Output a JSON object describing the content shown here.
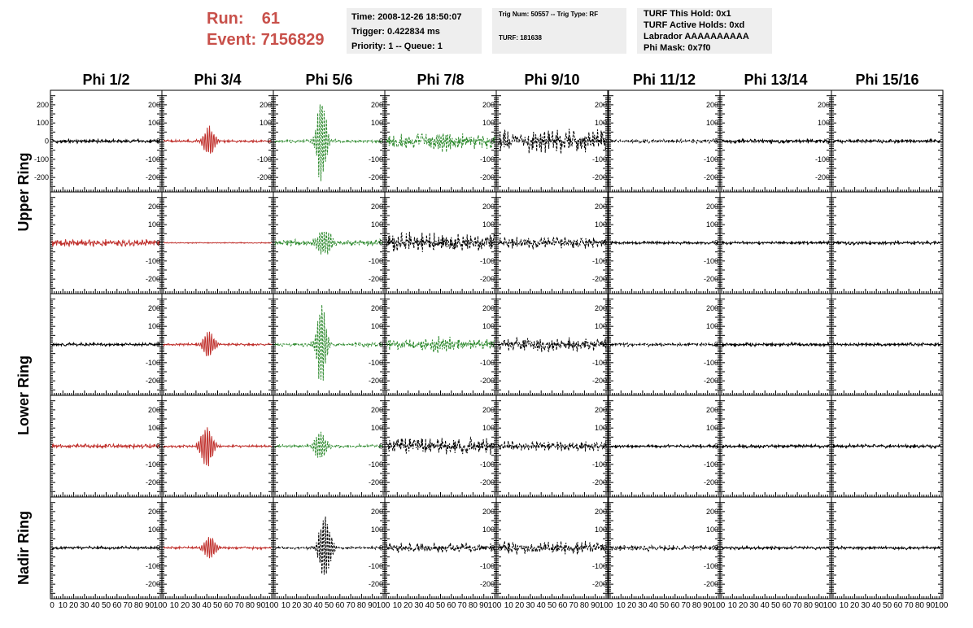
{
  "header": {
    "run_label": "Run:",
    "run_value": "61",
    "event_label": "Event:",
    "event_value": "7156829",
    "time_line": "Time: 2008-12-26 18:50:07",
    "trigger_line": "Trigger: 0.422834 ms",
    "priority_line": "Priority: 1 -- Queue: 1",
    "trig_line": "Trig Num: 50557 -- Trig Type: RF",
    "turf_line": "TURF: 181638",
    "hold_line": "TURF This Hold: 0x1",
    "active_holds_line": "TURF Active Holds: 0xd",
    "labrador_line": "Labrador AAAAAAAAAA",
    "phi_mask_line": "Phi Mask: 0x7f0"
  },
  "colors": {
    "black": "#000000",
    "red": "#c0302c",
    "green": "#2e8a2e",
    "accent": "#c8504a"
  },
  "chart_data": {
    "type": "line",
    "columns": [
      "Phi 1/2",
      "Phi 3/4",
      "Phi 5/6",
      "Phi 7/8",
      "Phi 9/10",
      "Phi 11/12",
      "Phi 13/14",
      "Phi 15/16"
    ],
    "rows": [
      "Upper Ring",
      "Lower Ring",
      "Nadir Ring"
    ],
    "ylim": [
      -280,
      280
    ],
    "yticks": [
      -200,
      -100,
      0,
      100,
      200
    ],
    "ytick_labels": [
      "-200",
      "-100",
      "0",
      "100",
      "200"
    ],
    "xlim": [
      0,
      100
    ],
    "xticks": [
      0,
      10,
      20,
      30,
      40,
      50,
      60,
      70,
      80,
      90,
      100
    ],
    "xtick_labels": [
      "0",
      "10",
      "20",
      "30",
      "40",
      "50",
      "60",
      "70",
      "80",
      "90",
      "100"
    ],
    "panels": [
      [
        {
          "color": "black",
          "style": "solid",
          "amp": 12,
          "burst": null
        },
        {
          "color": "red",
          "style": "solid",
          "amp": 8,
          "burst": {
            "t": 42,
            "amp": 90,
            "w": 6
          }
        },
        {
          "color": "green",
          "style": "dashed",
          "amp": 10,
          "burst": {
            "t": 43,
            "amp": 280,
            "w": 5
          }
        },
        {
          "color": "green",
          "style": "dashed",
          "amp": 45,
          "burst": {
            "t": 50,
            "amp": 40,
            "w": 12
          }
        },
        {
          "color": "black",
          "style": "dashed",
          "amp": 70,
          "burst": null
        },
        {
          "color": "black",
          "style": "dashed",
          "amp": 12,
          "burst": null
        },
        {
          "color": "black",
          "style": "solid",
          "amp": 14,
          "burst": null
        },
        {
          "color": "black",
          "style": "solid",
          "amp": 12,
          "burst": null
        }
      ],
      [
        {
          "color": "red",
          "style": "solid",
          "amp": 22,
          "burst": null
        },
        {
          "color": "red",
          "style": "solid",
          "amp": 3,
          "burst": null
        },
        {
          "color": "green",
          "style": "dashed",
          "amp": 20,
          "burst": {
            "t": 45,
            "amp": 80,
            "w": 8
          }
        },
        {
          "color": "black",
          "style": "dashed",
          "amp": 65,
          "burst": null
        },
        {
          "color": "black",
          "style": "dashed",
          "amp": 35,
          "burst": null
        },
        {
          "color": "black",
          "style": "solid",
          "amp": 10,
          "burst": null
        },
        {
          "color": "black",
          "style": "solid",
          "amp": 10,
          "burst": null
        },
        {
          "color": "black",
          "style": "solid",
          "amp": 12,
          "burst": null
        }
      ],
      [
        {
          "color": "black",
          "style": "solid",
          "amp": 10,
          "burst": null
        },
        {
          "color": "red",
          "style": "solid",
          "amp": 8,
          "burst": {
            "t": 42,
            "amp": 80,
            "w": 6
          }
        },
        {
          "color": "green",
          "style": "dashed",
          "amp": 12,
          "burst": {
            "t": 43,
            "amp": 260,
            "w": 5
          }
        },
        {
          "color": "green",
          "style": "dashed",
          "amp": 35,
          "burst": {
            "t": 50,
            "amp": 30,
            "w": 12
          }
        },
        {
          "color": "black",
          "style": "dashed",
          "amp": 40,
          "burst": {
            "t": 35,
            "amp": 20,
            "w": 15
          }
        },
        {
          "color": "black",
          "style": "dashed",
          "amp": 12,
          "burst": null
        },
        {
          "color": "black",
          "style": "solid",
          "amp": 12,
          "burst": null
        },
        {
          "color": "black",
          "style": "solid",
          "amp": 10,
          "burst": null
        }
      ],
      [
        {
          "color": "red",
          "style": "solid",
          "amp": 14,
          "burst": null
        },
        {
          "color": "red",
          "style": "solid",
          "amp": 8,
          "burst": {
            "t": 40,
            "amp": 140,
            "w": 6
          }
        },
        {
          "color": "green",
          "style": "dashed",
          "amp": 10,
          "burst": {
            "t": 42,
            "amp": 90,
            "w": 6
          }
        },
        {
          "color": "black",
          "style": "dashed",
          "amp": 50,
          "burst": null
        },
        {
          "color": "black",
          "style": "dashed",
          "amp": 30,
          "burst": null
        },
        {
          "color": "black",
          "style": "solid",
          "amp": 10,
          "burst": null
        },
        {
          "color": "black",
          "style": "solid",
          "amp": 12,
          "burst": null
        },
        {
          "color": "black",
          "style": "solid",
          "amp": 12,
          "burst": null
        }
      ],
      [
        {
          "color": "black",
          "style": "solid",
          "amp": 10,
          "burst": null
        },
        {
          "color": "red",
          "style": "solid",
          "amp": 8,
          "burst": {
            "t": 43,
            "amp": 70,
            "w": 6
          }
        },
        {
          "color": "black",
          "style": "dashed",
          "amp": 8,
          "burst": {
            "t": 46,
            "amp": 200,
            "w": 6
          }
        },
        {
          "color": "black",
          "style": "dashed",
          "amp": 30,
          "burst": null
        },
        {
          "color": "black",
          "style": "dashed",
          "amp": 40,
          "burst": null
        },
        {
          "color": "black",
          "style": "dashed",
          "amp": 18,
          "burst": null
        },
        {
          "color": "black",
          "style": "solid",
          "amp": 10,
          "burst": null
        },
        {
          "color": "black",
          "style": "solid",
          "amp": 10,
          "burst": null
        }
      ]
    ]
  }
}
